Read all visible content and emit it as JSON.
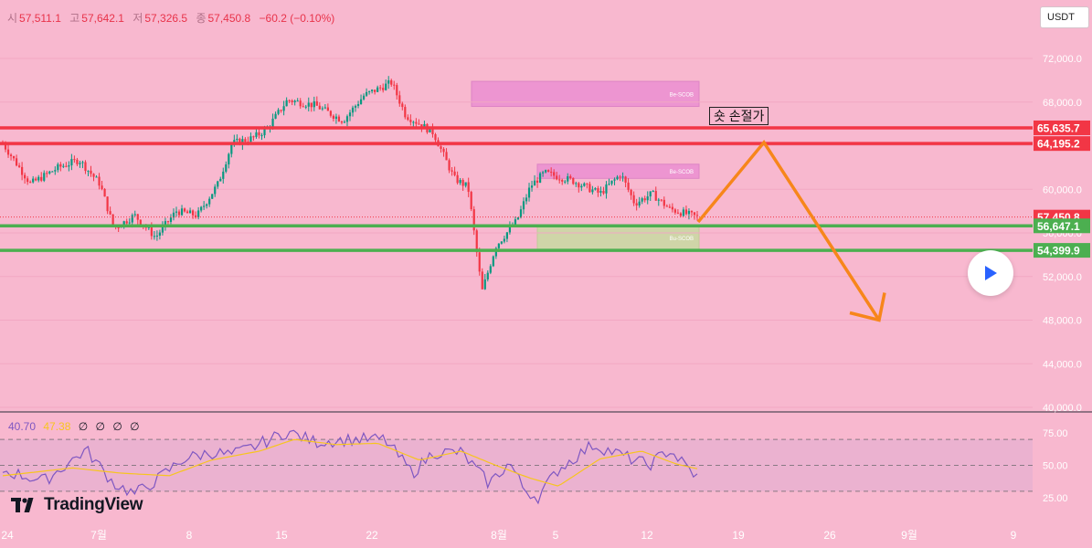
{
  "ohlc": {
    "open_label": "시",
    "open": "57,511.1",
    "high_label": "고",
    "high": "57,642.1",
    "low_label": "저",
    "low": "57,326.5",
    "close_label": "종",
    "close": "57,450.8",
    "change": "−60.2 (−0.10%)"
  },
  "currency_button": "USDT",
  "annotation_text": "숏 손절가",
  "indicator": {
    "rsi": "40.70",
    "ma": "47.38",
    "extra": [
      "∅",
      "∅",
      "∅",
      "∅"
    ],
    "rsi_color": "#7e57c2",
    "ma_color": "#f7c51e"
  },
  "brand": "TradingView",
  "colors": {
    "background": "#f8b8cf",
    "up": "#089981",
    "down": "#f23645",
    "resistance": "#f23645",
    "support": "#4caf50",
    "arrow": "#f7861b",
    "bear_zone": "#ec8fd2",
    "bull_zone": "#c8dba2"
  },
  "chart_data": [
    {
      "type": "candlestick",
      "x_ticks": [
        "24",
        "7월",
        "8",
        "15",
        "22",
        "8월",
        "5",
        "12",
        "19",
        "26",
        "9월",
        "9"
      ],
      "y_ticks": [
        "72,000.0",
        "68,000.0",
        "64,000.0",
        "60,000.0",
        "56,000.0",
        "52,000.0",
        "48,000.0",
        "44,000.0",
        "40,000.0"
      ],
      "ylim": [
        40000,
        72000
      ],
      "last_price": 57450.8,
      "price_labels": [
        {
          "value": 65635.7,
          "text": "65,635.7",
          "color": "#f23645"
        },
        {
          "value": 64195.2,
          "text": "64,195.2",
          "color": "#f23645"
        },
        {
          "value": 57450.8,
          "text": "57,450.8",
          "color": "#f23645"
        },
        {
          "value": 56647.1,
          "text": "56,647.1",
          "color": "#4caf50"
        },
        {
          "value": 54399.9,
          "text": "54,399.9",
          "color": "#4caf50"
        }
      ],
      "zones": [
        {
          "label": "Be-SCOB",
          "kind": "bear",
          "top": 69900,
          "bottom": 67600
        },
        {
          "label": "Be-SCOB",
          "kind": "bear",
          "top": 62300,
          "bottom": 61000
        },
        {
          "label": "Bu-SCOB",
          "kind": "bull",
          "top": 56600,
          "bottom": 54500
        }
      ],
      "projection": {
        "path": [
          57000,
          64300,
          48000
        ]
      },
      "series": [
        {
          "name": "",
          "key_points": [
            [
              0,
              64200
            ],
            [
              0.04,
              60500
            ],
            [
              0.08,
              62000
            ],
            [
              0.11,
              62700
            ],
            [
              0.14,
              60500
            ],
            [
              0.16,
              56400
            ],
            [
              0.19,
              57600
            ],
            [
              0.22,
              55600
            ],
            [
              0.25,
              58000
            ],
            [
              0.28,
              57600
            ],
            [
              0.31,
              60500
            ],
            [
              0.33,
              64200
            ],
            [
              0.36,
              64700
            ],
            [
              0.38,
              65500
            ],
            [
              0.41,
              68200
            ],
            [
              0.45,
              67700
            ],
            [
              0.49,
              66300
            ],
            [
              0.52,
              68600
            ],
            [
              0.56,
              69800
            ],
            [
              0.58,
              66800
            ],
            [
              0.62,
              65200
            ],
            [
              0.65,
              61000
            ],
            [
              0.67,
              60200
            ],
            [
              0.69,
              50600
            ],
            [
              0.71,
              54800
            ],
            [
              0.74,
              57100
            ],
            [
              0.76,
              60300
            ],
            [
              0.78,
              61500
            ],
            [
              0.82,
              60800
            ],
            [
              0.86,
              59600
            ],
            [
              0.89,
              61400
            ],
            [
              0.91,
              58700
            ],
            [
              0.935,
              59600
            ],
            [
              0.96,
              58200
            ],
            [
              1.0,
              57450
            ]
          ]
        }
      ]
    },
    {
      "type": "line",
      "ylim": [
        20,
        85
      ],
      "y_ticks": [
        "75.00",
        "50.00",
        "25.00"
      ],
      "bands": [
        30,
        50,
        70
      ],
      "series": [
        {
          "name": "",
          "key_points": [
            [
              0,
              46
            ],
            [
              0.06,
              38
            ],
            [
              0.12,
              62
            ],
            [
              0.16,
              36
            ],
            [
              0.19,
              28
            ],
            [
              0.22,
              38
            ],
            [
              0.26,
              55
            ],
            [
              0.3,
              60
            ],
            [
              0.33,
              58
            ],
            [
              0.36,
              64
            ],
            [
              0.41,
              76
            ],
            [
              0.45,
              68
            ],
            [
              0.5,
              70
            ],
            [
              0.55,
              70
            ],
            [
              0.59,
              44
            ],
            [
              0.62,
              60
            ],
            [
              0.66,
              60
            ],
            [
              0.7,
              36
            ],
            [
              0.73,
              52
            ],
            [
              0.75,
              32
            ],
            [
              0.77,
              25
            ],
            [
              0.8,
              47
            ],
            [
              0.85,
              66
            ],
            [
              0.9,
              56
            ],
            [
              0.93,
              50
            ],
            [
              0.96,
              62
            ],
            [
              1.0,
              40.7
            ]
          ]
        },
        {
          "name": "",
          "key_points": [
            [
              0,
              42
            ],
            [
              0.1,
              48
            ],
            [
              0.17,
              44
            ],
            [
              0.24,
              42
            ],
            [
              0.3,
              54
            ],
            [
              0.37,
              61
            ],
            [
              0.42,
              70
            ],
            [
              0.48,
              66
            ],
            [
              0.54,
              67
            ],
            [
              0.6,
              54
            ],
            [
              0.66,
              61
            ],
            [
              0.71,
              50
            ],
            [
              0.76,
              40
            ],
            [
              0.8,
              34
            ],
            [
              0.86,
              55
            ],
            [
              0.92,
              61
            ],
            [
              0.97,
              51
            ],
            [
              1.0,
              47.38
            ]
          ]
        }
      ]
    }
  ]
}
